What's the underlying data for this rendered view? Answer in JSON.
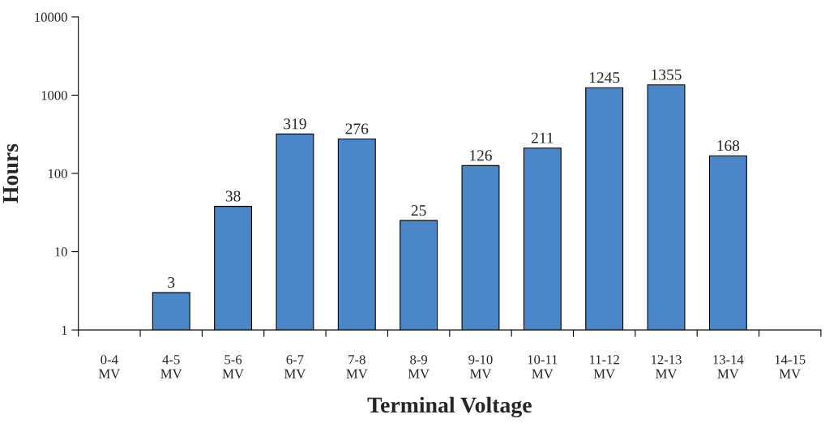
{
  "chart_data": {
    "type": "bar",
    "xlabel": "Terminal Voltage",
    "ylabel": "Hours",
    "categories": [
      "0-4\nMV",
      "4-5\nMV",
      "5-6\nMV",
      "6-7\nMV",
      "7-8\nMV",
      "8-9\nMV",
      "9-10\nMV",
      "10-11\nMV",
      "11-12\nMV",
      "12-13\nMV",
      "13-14\nMV",
      "14-15\nMV"
    ],
    "values": [
      null,
      3,
      38,
      319,
      276,
      25,
      126,
      211,
      1245,
      1355,
      168,
      null
    ],
    "color": "#4a86c8",
    "log": "y",
    "ylim": [
      1,
      10000
    ],
    "yticks": [
      1,
      10,
      100,
      1000,
      10000
    ],
    "data_labels": true,
    "grid": false,
    "legend": false
  }
}
